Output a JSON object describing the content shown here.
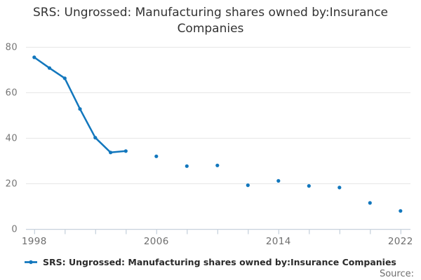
{
  "page": {
    "title": "SRS: Ungrossed: Manufacturing shares owned by:Insurance Companies"
  },
  "legend": {
    "label": "SRS: Ungrossed: Manufacturing shares owned by:Insurance Companies"
  },
  "source": {
    "label": "Source:"
  },
  "colors": {
    "accent": "#1277bd",
    "grid": "#e6e6e6",
    "axis_line": "#c3cfda",
    "title_text": "#333333",
    "y_tick_text": "#757575",
    "x_tick_text": "#6e6e6e",
    "legend_text": "#2b2b2b",
    "source_text": "#6e6e6e",
    "background": "#ffffff"
  },
  "chart_data": {
    "type": "line",
    "title": "SRS: Ungrossed: Manufacturing shares owned by:Insurance Companies",
    "x": [
      1998,
      1999,
      2000,
      2001,
      2002,
      2003,
      2004,
      2006,
      2008,
      2010,
      2012,
      2014,
      2016,
      2018,
      2020,
      2022
    ],
    "y": [
      75.4,
      70.7,
      66.2,
      52.7,
      40.1,
      33.6,
      34.2,
      31.9,
      27.6,
      27.9,
      19.2,
      21.1,
      18.9,
      18.2,
      11.4,
      7.9
    ],
    "xlabel": "",
    "ylabel": "",
    "xlim": [
      1998,
      2022
    ],
    "ylim": [
      0,
      80
    ],
    "yticks": [
      0,
      20,
      40,
      60,
      80
    ],
    "xticks_minor": [
      1998,
      2000,
      2002,
      2004,
      2006,
      2008,
      2010,
      2012,
      2014,
      2016,
      2018,
      2020,
      2022
    ],
    "xtick_labels_shown": [
      "1998",
      "2006",
      "2014",
      "2022"
    ],
    "grid": "horizontal-only",
    "legend_position": "bottom-left",
    "marker": "circle",
    "line_breaks_when_year_gap": true
  }
}
